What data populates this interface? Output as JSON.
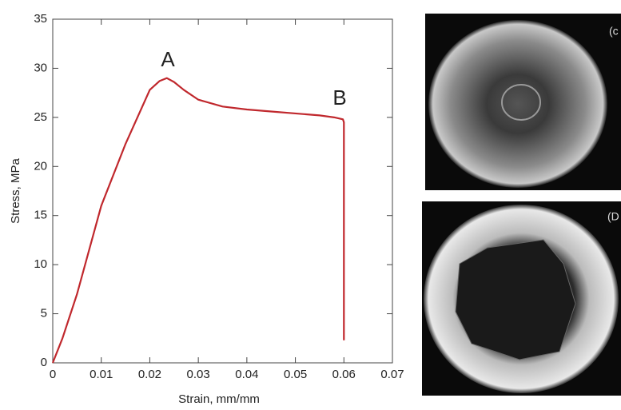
{
  "chart_data": {
    "type": "line",
    "x_label": "Strain, mm/mm",
    "y_label": "Stress, MPa",
    "x": [
      0,
      0.002,
      0.005,
      0.01,
      0.015,
      0.02,
      0.022,
      0.0235,
      0.025,
      0.027,
      0.03,
      0.035,
      0.04,
      0.045,
      0.05,
      0.055,
      0.058,
      0.0598,
      0.06,
      0.06
    ],
    "values": [
      0,
      2.5,
      7,
      16,
      22.3,
      27.8,
      28.7,
      29,
      28.6,
      27.8,
      26.8,
      26.1,
      25.8,
      25.6,
      25.4,
      25.2,
      25,
      24.8,
      24.5,
      2.3
    ],
    "color": "#c0282d",
    "xlim": [
      0,
      0.07
    ],
    "xticks": [
      0,
      0.01,
      0.02,
      0.03,
      0.04,
      0.05,
      0.06,
      0.07
    ],
    "ylim": [
      0,
      35
    ],
    "yticks": [
      0,
      5,
      10,
      15,
      20,
      25,
      30,
      35
    ],
    "annotations": [
      "A",
      "B"
    ]
  },
  "panels": [
    {
      "label": "(c"
    },
    {
      "label": "(D"
    }
  ]
}
